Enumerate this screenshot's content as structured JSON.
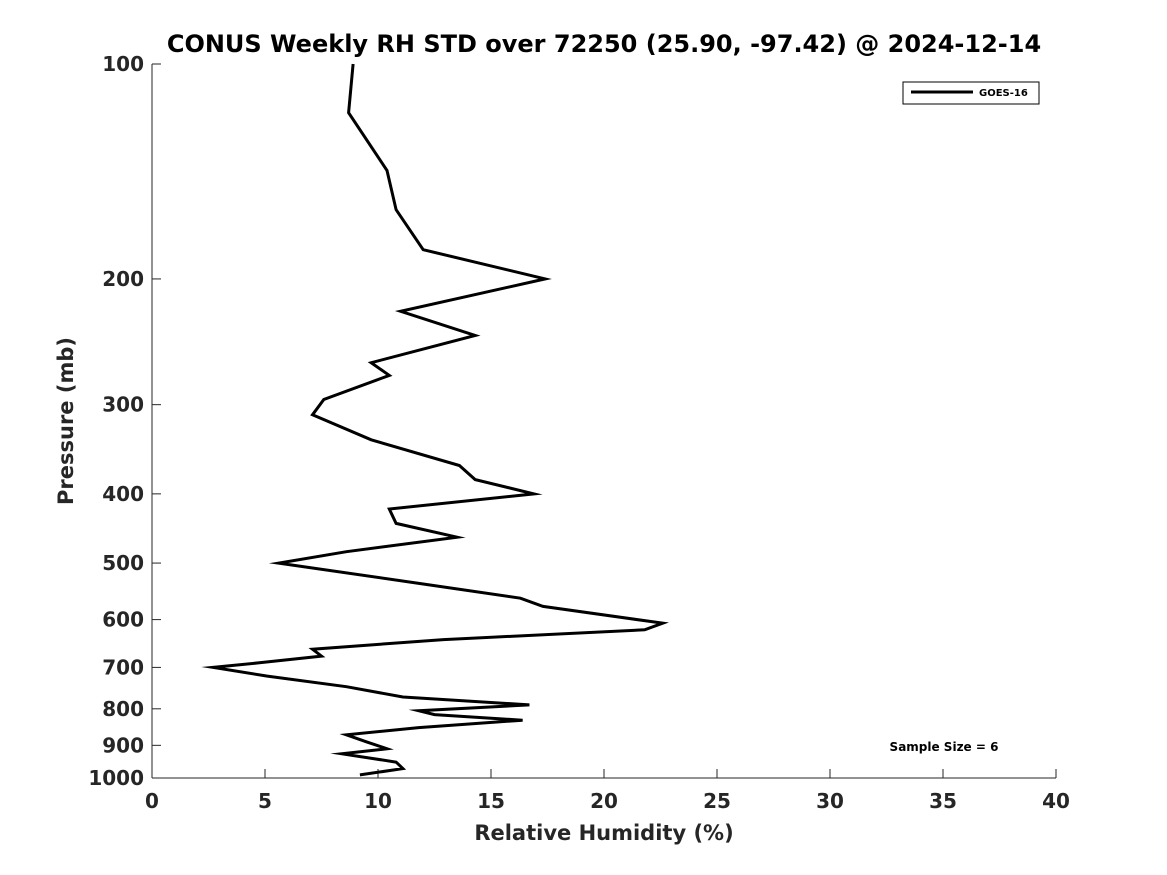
{
  "chart_data": {
    "type": "line",
    "title": "CONUS Weekly RH STD over 72250 (25.90, -97.42) @ 2024-12-14",
    "xlabel": "Relative Humidity (%)",
    "ylabel": "Pressure (mb)",
    "xlim": [
      0,
      40
    ],
    "ylim": [
      100,
      1000
    ],
    "y_scale": "log",
    "y_reversed": true,
    "grid": false,
    "x_ticks": [
      "0",
      "5",
      "10",
      "15",
      "20",
      "25",
      "30",
      "35",
      "40"
    ],
    "y_ticks": [
      "100",
      "200",
      "300",
      "400",
      "500",
      "600",
      "700",
      "800",
      "900",
      "1000"
    ],
    "legend": {
      "placement": "top-right",
      "entries": [
        "GOES-16"
      ]
    },
    "annotation": "Sample Size = 6",
    "series": [
      {
        "name": "GOES-16",
        "color": "#000000",
        "points": [
          [
            8.9,
            100
          ],
          [
            8.7,
            117
          ],
          [
            10.4,
            141
          ],
          [
            10.8,
            160
          ],
          [
            12.0,
            182
          ],
          [
            17.4,
            200
          ],
          [
            11.0,
            222
          ],
          [
            14.3,
            240
          ],
          [
            9.7,
            262
          ],
          [
            10.5,
            273
          ],
          [
            7.6,
            295
          ],
          [
            7.1,
            310
          ],
          [
            9.7,
            336
          ],
          [
            13.6,
            365
          ],
          [
            14.3,
            382
          ],
          [
            16.9,
            400
          ],
          [
            10.5,
            420
          ],
          [
            10.8,
            440
          ],
          [
            13.5,
            460
          ],
          [
            8.6,
            482
          ],
          [
            5.6,
            500
          ],
          [
            12.0,
            535
          ],
          [
            16.3,
            560
          ],
          [
            17.3,
            575
          ],
          [
            22.6,
            607
          ],
          [
            21.8,
            620
          ],
          [
            12.9,
            640
          ],
          [
            7.1,
            660
          ],
          [
            7.5,
            675
          ],
          [
            4.7,
            690
          ],
          [
            2.7,
            700
          ],
          [
            5.1,
            720
          ],
          [
            8.6,
            745
          ],
          [
            11.1,
            770
          ],
          [
            16.7,
            790
          ],
          [
            11.8,
            805
          ],
          [
            12.5,
            815
          ],
          [
            16.4,
            830
          ],
          [
            11.8,
            850
          ],
          [
            8.6,
            870
          ],
          [
            9.5,
            890
          ],
          [
            10.4,
            910
          ],
          [
            8.4,
            925
          ],
          [
            10.8,
            950
          ],
          [
            11.1,
            970
          ],
          [
            9.2,
            990
          ]
        ]
      }
    ]
  }
}
